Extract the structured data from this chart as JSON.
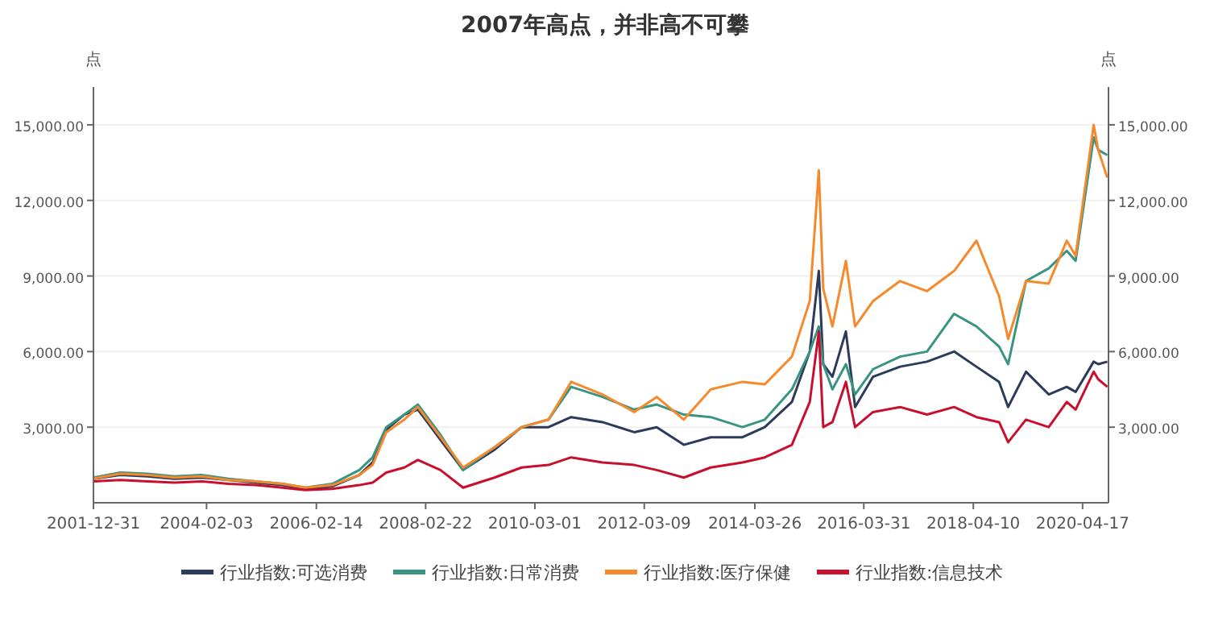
{
  "chart_data": {
    "type": "line",
    "title": "2007年高点，并非高不可攀",
    "ylabel": "点",
    "y2label": "点",
    "x": [
      "2002-01",
      "2002-07",
      "2003-01",
      "2003-07",
      "2004-01",
      "2004-07",
      "2005-01",
      "2005-07",
      "2005-12",
      "2006-06",
      "2006-12",
      "2007-03",
      "2007-06",
      "2007-10",
      "2008-01",
      "2008-06",
      "2008-11",
      "2009-06",
      "2009-12",
      "2010-06",
      "2010-11",
      "2011-06",
      "2012-01",
      "2012-06",
      "2012-12",
      "2013-06",
      "2014-01",
      "2014-06",
      "2014-12",
      "2015-04",
      "2015-06",
      "2015-07",
      "2015-09",
      "2015-12",
      "2016-02",
      "2016-06",
      "2016-12",
      "2017-06",
      "2017-12",
      "2018-05",
      "2018-10",
      "2018-12",
      "2019-04",
      "2019-09",
      "2020-01",
      "2020-03",
      "2020-07",
      "2020-08",
      "2020-10"
    ],
    "series": [
      {
        "name": "行业指数:可选消费",
        "color": "#2c3a5c",
        "values": [
          950,
          1100,
          1050,
          950,
          1000,
          900,
          800,
          700,
          550,
          650,
          1100,
          1600,
          2900,
          3500,
          3700,
          2500,
          1300,
          2100,
          3000,
          3000,
          3400,
          3200,
          2800,
          3000,
          2300,
          2600,
          2600,
          3000,
          4000,
          6000,
          9200,
          5500,
          5000,
          6800,
          3800,
          5000,
          5400,
          5600,
          6000,
          5400,
          4800,
          3800,
          5200,
          4300,
          4600,
          4400,
          5600,
          5500,
          5600
        ]
      },
      {
        "name": "行业指数:日常消费",
        "color": "#3a9484",
        "values": [
          1000,
          1200,
          1150,
          1050,
          1100,
          950,
          850,
          750,
          600,
          750,
          1300,
          1800,
          3000,
          3500,
          3900,
          2700,
          1300,
          2200,
          3000,
          3300,
          4600,
          4200,
          3700,
          3900,
          3500,
          3400,
          3000,
          3300,
          4500,
          6000,
          7000,
          5500,
          4500,
          5500,
          4300,
          5300,
          5800,
          6000,
          7500,
          7000,
          6200,
          5500,
          8800,
          9300,
          10000,
          9600,
          14500,
          14000,
          13800
        ]
      },
      {
        "name": "行业指数:医疗保健",
        "color": "#f5892c",
        "values": [
          960,
          1150,
          1100,
          1000,
          1050,
          900,
          850,
          750,
          600,
          700,
          1100,
          1500,
          2800,
          3300,
          3800,
          2600,
          1400,
          2200,
          3000,
          3300,
          4800,
          4300,
          3600,
          4200,
          3300,
          4500,
          4800,
          4700,
          5800,
          8000,
          13200,
          8500,
          7000,
          9600,
          7000,
          8000,
          8800,
          8400,
          9200,
          10400,
          8200,
          6500,
          8800,
          8700,
          10400,
          9800,
          15000,
          14000,
          12900
        ]
      },
      {
        "name": "行业指数:信息技术",
        "color": "#c8102e",
        "values": [
          850,
          900,
          850,
          800,
          850,
          750,
          700,
          600,
          500,
          550,
          700,
          800,
          1200,
          1400,
          1700,
          1300,
          600,
          1000,
          1400,
          1500,
          1800,
          1600,
          1500,
          1300,
          1000,
          1400,
          1600,
          1800,
          2300,
          4000,
          6800,
          3000,
          3200,
          4800,
          3000,
          3600,
          3800,
          3500,
          3800,
          3400,
          3200,
          2400,
          3300,
          3000,
          4000,
          3700,
          5200,
          4900,
          4600
        ]
      }
    ],
    "xlim": [
      "2001-12-31",
      "2020-10-09"
    ],
    "xticks": [
      {
        "value": "2001-12-31",
        "label": "2001-12-31"
      },
      {
        "value": "2004-02-03",
        "label": "2004-02-03"
      },
      {
        "value": "2006-02-14",
        "label": "2006-02-14"
      },
      {
        "value": "2008-02-22",
        "label": "2008-02-22"
      },
      {
        "value": "2010-03-01",
        "label": "2010-03-01"
      },
      {
        "value": "2012-03-09",
        "label": "2012-03-09"
      },
      {
        "value": "2014-03-26",
        "label": "2014-03-26"
      },
      {
        "value": "2016-03-31",
        "label": "2016-03-31"
      },
      {
        "value": "2018-04-10",
        "label": "2018-04-10"
      },
      {
        "value": "2020-04-17",
        "label": "2020-04-17"
      }
    ],
    "ylim": [
      0,
      16500
    ],
    "yticks": [
      {
        "value": 3000,
        "label": "3,000.00"
      },
      {
        "value": 6000,
        "label": "6,000.00"
      },
      {
        "value": 9000,
        "label": "9,000.00"
      },
      {
        "value": 12000,
        "label": "12,000.00"
      },
      {
        "value": 15000,
        "label": "15,000.00"
      }
    ],
    "y2lim": [
      0,
      16500
    ],
    "y2ticks": [
      {
        "value": 3000,
        "label": "3,000.00"
      },
      {
        "value": 6000,
        "label": "6,000.00"
      },
      {
        "value": 9000,
        "label": "9,000.00"
      },
      {
        "value": 12000,
        "label": "12,000.00"
      },
      {
        "value": 15000,
        "label": "15,000.00"
      }
    ],
    "grid": "y",
    "legend": "bottom",
    "marker": "none",
    "line_style": "solid"
  }
}
